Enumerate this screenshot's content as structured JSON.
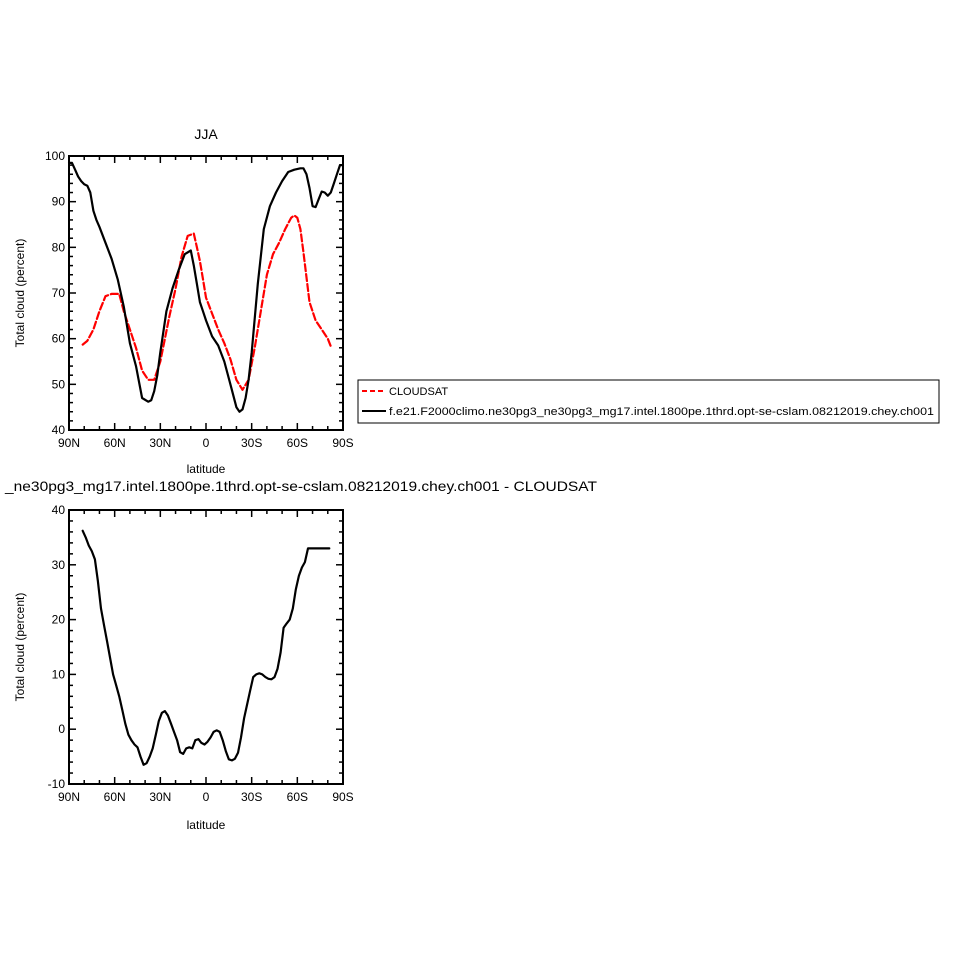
{
  "chart_data": [
    {
      "type": "line",
      "title": "JJA",
      "xlabel": "latitude",
      "ylabel": "Total cloud (percent)",
      "xlim": [
        -90,
        90
      ],
      "ylim": [
        40,
        100
      ],
      "x_tick_values": [
        -90,
        -60,
        -30,
        0,
        30,
        60,
        90
      ],
      "x_tick_labels": [
        "90N",
        "60N",
        "30N",
        "0",
        "30S",
        "60S",
        "90S"
      ],
      "y_tick_values": [
        40,
        50,
        60,
        70,
        80,
        90,
        100
      ],
      "y_tick_labels": [
        "40",
        "50",
        "60",
        "70",
        "80",
        "90",
        "100"
      ],
      "legend_position": "right",
      "series": [
        {
          "name": "CLOUDSAT",
          "color": "#ff0000",
          "dash": "dashed",
          "x": [
            -81,
            -78,
            -74,
            -70,
            -66,
            -62,
            -57,
            -54,
            -50,
            -46,
            -42,
            -38,
            -34,
            -30,
            -27,
            -24,
            -20,
            -16,
            -12,
            -8,
            -6,
            -4,
            -2,
            0,
            4,
            8,
            12,
            16,
            20,
            24,
            28,
            32,
            36,
            40,
            44,
            48,
            52,
            56,
            58,
            60,
            62,
            64,
            68,
            72,
            76,
            80,
            82
          ],
          "y": [
            58.7,
            59.5,
            62,
            66,
            69.3,
            69.8,
            69.8,
            66,
            62,
            58,
            53,
            51,
            51,
            55,
            60,
            65,
            71,
            78,
            82.5,
            83,
            80,
            77,
            73,
            69,
            65.5,
            62,
            59,
            55.5,
            51,
            48.8,
            51,
            58,
            66,
            74,
            78.5,
            81,
            84,
            86.5,
            87,
            86.5,
            84,
            79,
            68,
            64,
            62,
            60,
            58.3
          ]
        },
        {
          "name": "f.e21.F2000climo.ne30pg3_ne30pg3_mg17.intel.1800pe.1thrd.opt-se-cslam.08212019.chey.ch001",
          "color": "#000000",
          "dash": "solid",
          "x": [
            -90,
            -88,
            -86,
            -84,
            -82,
            -80,
            -78,
            -76,
            -74,
            -72,
            -70,
            -66,
            -62,
            -58,
            -54,
            -50,
            -46,
            -42,
            -38,
            -36,
            -34,
            -32,
            -30,
            -26,
            -22,
            -18,
            -14,
            -10,
            -8,
            -6,
            -4,
            -2,
            0,
            4,
            8,
            12,
            16,
            20,
            22,
            24,
            26,
            28,
            30,
            34,
            38,
            42,
            46,
            50,
            54,
            58,
            62,
            64,
            66,
            68,
            70,
            72,
            74,
            76,
            78,
            80,
            82,
            84,
            86,
            88,
            90
          ],
          "y": [
            98.5,
            98.5,
            97,
            95.5,
            94.5,
            93.8,
            93.5,
            92,
            88,
            86,
            84.5,
            81,
            77.5,
            73,
            67,
            59,
            54,
            47,
            46.2,
            46.5,
            48.5,
            52,
            57,
            66,
            71,
            75,
            78.5,
            79.3,
            76,
            72,
            68,
            66,
            64,
            60.5,
            58.5,
            55,
            50,
            45,
            44,
            44.5,
            47,
            51,
            57,
            72,
            84,
            89,
            92,
            94.5,
            96.5,
            97,
            97.3,
            97.3,
            96,
            93,
            89,
            88.8,
            90.5,
            92.2,
            92,
            91.3,
            92,
            94,
            96,
            98,
            98
          ]
        }
      ]
    },
    {
      "type": "line",
      "title": "_ne30pg3_mg17.intel.1800pe.1thrd.opt-se-cslam.08212019.chey.ch001 - CLOUDSAT",
      "xlabel": "latitude",
      "ylabel": "Total cloud (percent)",
      "xlim": [
        -90,
        90
      ],
      "ylim": [
        -10,
        40
      ],
      "x_tick_values": [
        -90,
        -60,
        -30,
        0,
        30,
        60,
        90
      ],
      "x_tick_labels": [
        "90N",
        "60N",
        "30N",
        "0",
        "30S",
        "60S",
        "90S"
      ],
      "y_tick_values": [
        -10,
        0,
        10,
        20,
        30,
        40
      ],
      "y_tick_labels": [
        "-10",
        "0",
        "10",
        "20",
        "30",
        "40"
      ],
      "series": [
        {
          "color": "#000000",
          "dash": "solid",
          "x": [
            -81,
            -79,
            -77,
            -75,
            -73,
            -71,
            -69,
            -67,
            -65,
            -63,
            -61,
            -59,
            -57,
            -55,
            -53,
            -51,
            -49,
            -47,
            -45,
            -43,
            -41,
            -39,
            -37,
            -35,
            -33,
            -31,
            -29,
            -27,
            -25,
            -23,
            -21,
            -19,
            -17,
            -15,
            -13,
            -11,
            -9,
            -7,
            -5,
            -3,
            -1,
            1,
            3,
            5,
            7,
            9,
            11,
            13,
            15,
            17,
            19,
            21,
            23,
            25,
            27,
            29,
            31,
            33,
            35,
            37,
            39,
            41,
            43,
            45,
            47,
            49,
            51,
            53,
            55,
            57,
            59,
            61,
            63,
            65,
            67,
            69,
            71,
            73,
            75,
            77,
            79,
            81
          ],
          "y": [
            36.2,
            35,
            33.5,
            32.5,
            31,
            27,
            22,
            19,
            16,
            13,
            10,
            8,
            6,
            3.5,
            1,
            -1,
            -2,
            -2.8,
            -3.3,
            -5,
            -6.5,
            -6.2,
            -5,
            -3.5,
            -1,
            1.5,
            3,
            3.3,
            2.5,
            1,
            -0.5,
            -2,
            -4.2,
            -4.5,
            -3.5,
            -3.3,
            -3.5,
            -2,
            -1.8,
            -2.5,
            -2.8,
            -2.3,
            -1.5,
            -0.5,
            -0.2,
            -0.5,
            -2,
            -4,
            -5.5,
            -5.7,
            -5.4,
            -4.3,
            -1.5,
            2,
            4.5,
            7,
            9.5,
            10,
            10.2,
            10,
            9.5,
            9.2,
            9.1,
            9.5,
            11,
            14,
            18.5,
            19.3,
            20,
            22,
            25.5,
            28,
            29.5,
            30.5,
            33,
            33,
            33,
            33,
            33,
            33,
            33,
            33
          ]
        }
      ]
    }
  ]
}
